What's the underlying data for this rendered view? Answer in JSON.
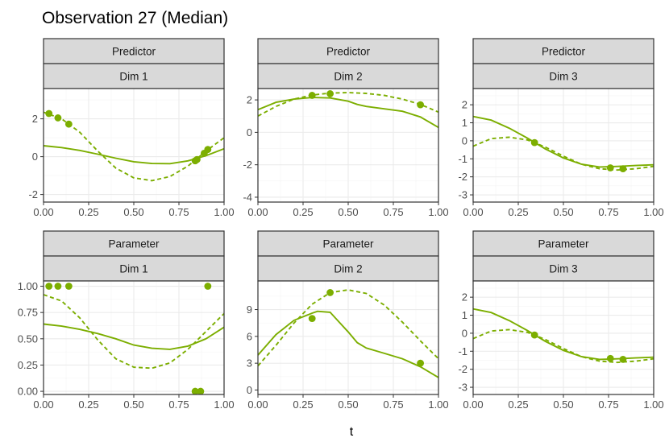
{
  "title": "Observation 27 (Median)",
  "xlabel": "t",
  "series_color": "#7cae00",
  "chart_data": {
    "type": "line",
    "title": "Observation 27 (Median)",
    "xlabel": "t",
    "ylabel": "",
    "grid": true,
    "facets": [
      {
        "strip": [
          "Predictor",
          "Dim 1"
        ],
        "xlim": [
          0,
          1
        ],
        "ylim": [
          -2.4,
          3.6
        ],
        "xticks": [
          0,
          0.25,
          0.5,
          0.75,
          1
        ],
        "xtick_labels": [
          "0.00",
          "0.25",
          "0.50",
          "0.75",
          "1.00"
        ],
        "yticks": [
          -2,
          0,
          2
        ],
        "ytick_labels": [
          "-2",
          "0",
          "2"
        ],
        "solid": {
          "x": [
            0,
            0.1,
            0.2,
            0.3,
            0.4,
            0.5,
            0.6,
            0.7,
            0.8,
            0.9,
            1.0
          ],
          "y": [
            0.58,
            0.48,
            0.33,
            0.13,
            -0.08,
            -0.27,
            -0.36,
            -0.37,
            -0.22,
            0.05,
            0.42
          ]
        },
        "dashed": {
          "x": [
            0,
            0.1,
            0.2,
            0.3,
            0.4,
            0.5,
            0.6,
            0.7,
            0.8,
            0.9,
            1.0
          ],
          "y": [
            2.35,
            2.0,
            1.3,
            0.3,
            -0.6,
            -1.12,
            -1.27,
            -1.05,
            -0.5,
            0.3,
            1.0
          ]
        },
        "points": {
          "x": [
            0.03,
            0.08,
            0.14,
            0.84,
            0.85,
            0.89,
            0.91
          ],
          "y": [
            2.28,
            2.05,
            1.72,
            -0.22,
            -0.15,
            0.18,
            0.38
          ]
        }
      },
      {
        "strip": [
          "Predictor",
          "Dim 2"
        ],
        "xlim": [
          0,
          1
        ],
        "ylim": [
          -4.3,
          2.7
        ],
        "xticks": [
          0,
          0.25,
          0.5,
          0.75,
          1
        ],
        "xtick_labels": [
          "0.00",
          "0.25",
          "0.50",
          "0.75",
          "1.00"
        ],
        "yticks": [
          -4,
          -2,
          0,
          2
        ],
        "ytick_labels": [
          "-4",
          "-2",
          "0",
          "2"
        ],
        "solid": {
          "x": [
            0,
            0.1,
            0.2,
            0.3,
            0.4,
            0.5,
            0.55,
            0.6,
            0.7,
            0.8,
            0.9,
            1.0
          ],
          "y": [
            1.4,
            1.85,
            2.05,
            2.15,
            2.12,
            1.92,
            1.72,
            1.6,
            1.45,
            1.3,
            0.95,
            0.3
          ]
        },
        "dashed": {
          "x": [
            0,
            0.1,
            0.2,
            0.3,
            0.4,
            0.5,
            0.6,
            0.7,
            0.8,
            0.9,
            1.0
          ],
          "y": [
            1.0,
            1.6,
            2.05,
            2.3,
            2.42,
            2.45,
            2.4,
            2.28,
            2.05,
            1.72,
            1.25
          ]
        },
        "points": {
          "x": [
            0.3,
            0.4,
            0.9
          ],
          "y": [
            2.28,
            2.38,
            1.7
          ]
        }
      },
      {
        "strip": [
          "Predictor",
          "Dim 3"
        ],
        "xlim": [
          0,
          1
        ],
        "ylim": [
          -3.4,
          2.9
        ],
        "xticks": [
          0,
          0.25,
          0.5,
          0.75,
          1
        ],
        "xtick_labels": [
          "0.00",
          "0.25",
          "0.50",
          "0.75",
          "1.00"
        ],
        "yticks": [
          -3,
          -2,
          -1,
          0,
          1,
          2
        ],
        "ytick_labels": [
          "-3",
          "-2",
          "-1",
          "0",
          "1",
          "2"
        ],
        "solid": {
          "x": [
            0,
            0.1,
            0.2,
            0.3,
            0.4,
            0.5,
            0.6,
            0.7,
            0.8,
            0.9,
            1.0
          ],
          "y": [
            1.35,
            1.15,
            0.7,
            0.15,
            -0.45,
            -0.95,
            -1.3,
            -1.45,
            -1.42,
            -1.37,
            -1.33
          ]
        },
        "dashed": {
          "x": [
            0,
            0.1,
            0.2,
            0.3,
            0.4,
            0.5,
            0.6,
            0.7,
            0.8,
            0.9,
            1.0
          ],
          "y": [
            -0.3,
            0.12,
            0.2,
            0.05,
            -0.35,
            -0.85,
            -1.3,
            -1.55,
            -1.62,
            -1.55,
            -1.42
          ]
        },
        "points": {
          "x": [
            0.34,
            0.76,
            0.83
          ],
          "y": [
            -0.1,
            -1.5,
            -1.55
          ]
        }
      },
      {
        "strip": [
          "Parameter",
          "Dim 1"
        ],
        "xlim": [
          0,
          1
        ],
        "ylim": [
          -0.03,
          1.05
        ],
        "xticks": [
          0,
          0.25,
          0.5,
          0.75,
          1
        ],
        "xtick_labels": [
          "0.00",
          "0.25",
          "0.50",
          "0.75",
          "1.00"
        ],
        "yticks": [
          0,
          0.25,
          0.5,
          0.75,
          1
        ],
        "ytick_labels": [
          "0.00",
          "0.25",
          "0.50",
          "0.75",
          "1.00"
        ],
        "solid": {
          "x": [
            0,
            0.1,
            0.2,
            0.3,
            0.4,
            0.5,
            0.6,
            0.7,
            0.8,
            0.9,
            1.0
          ],
          "y": [
            0.64,
            0.62,
            0.59,
            0.55,
            0.5,
            0.44,
            0.41,
            0.4,
            0.43,
            0.5,
            0.61
          ]
        },
        "dashed": {
          "x": [
            0,
            0.1,
            0.2,
            0.3,
            0.4,
            0.5,
            0.6,
            0.7,
            0.8,
            0.9,
            1.0
          ],
          "y": [
            0.92,
            0.86,
            0.7,
            0.49,
            0.31,
            0.23,
            0.22,
            0.27,
            0.4,
            0.57,
            0.74
          ]
        },
        "points": {
          "x": [
            0.03,
            0.08,
            0.14,
            0.84,
            0.87,
            0.91
          ],
          "y": [
            1.0,
            1.0,
            1.0,
            0.0,
            0.0,
            1.0
          ]
        }
      },
      {
        "strip": [
          "Parameter",
          "Dim 2"
        ],
        "xlim": [
          0,
          1
        ],
        "ylim": [
          -0.5,
          12.2
        ],
        "xticks": [
          0,
          0.25,
          0.5,
          0.75,
          1
        ],
        "xtick_labels": [
          "0.00",
          "0.25",
          "0.50",
          "0.75",
          "1.00"
        ],
        "yticks": [
          0,
          3,
          6,
          9
        ],
        "ytick_labels": [
          "0",
          "3",
          "6",
          "9"
        ],
        "solid": {
          "x": [
            0,
            0.1,
            0.2,
            0.3,
            0.33,
            0.4,
            0.45,
            0.5,
            0.55,
            0.6,
            0.7,
            0.8,
            0.9,
            1.0
          ],
          "y": [
            3.9,
            6.2,
            7.8,
            8.6,
            8.8,
            8.7,
            7.6,
            6.5,
            5.3,
            4.7,
            4.1,
            3.5,
            2.6,
            1.4
          ]
        },
        "dashed": {
          "x": [
            0,
            0.1,
            0.2,
            0.3,
            0.4,
            0.5,
            0.6,
            0.7,
            0.8,
            0.9,
            1.0
          ],
          "y": [
            2.7,
            5.0,
            7.5,
            9.6,
            10.9,
            11.2,
            10.8,
            9.5,
            7.6,
            5.5,
            3.5
          ]
        },
        "points": {
          "x": [
            0.3,
            0.4,
            0.9
          ],
          "y": [
            8.0,
            10.9,
            3.0
          ]
        }
      },
      {
        "strip": [
          "Parameter",
          "Dim 3"
        ],
        "xlim": [
          0,
          1
        ],
        "ylim": [
          -3.4,
          2.9
        ],
        "xticks": [
          0,
          0.25,
          0.5,
          0.75,
          1
        ],
        "xtick_labels": [
          "0.00",
          "0.25",
          "0.50",
          "0.75",
          "1.00"
        ],
        "yticks": [
          -3,
          -2,
          -1,
          0,
          1,
          2
        ],
        "ytick_labels": [
          "-3",
          "-2",
          "-1",
          "0",
          "1",
          "2"
        ],
        "solid": {
          "x": [
            0,
            0.1,
            0.2,
            0.3,
            0.4,
            0.5,
            0.6,
            0.7,
            0.8,
            0.9,
            1.0
          ],
          "y": [
            1.35,
            1.15,
            0.7,
            0.15,
            -0.45,
            -0.95,
            -1.3,
            -1.45,
            -1.42,
            -1.37,
            -1.33
          ]
        },
        "dashed": {
          "x": [
            0,
            0.1,
            0.2,
            0.3,
            0.4,
            0.5,
            0.6,
            0.7,
            0.8,
            0.9,
            1.0
          ],
          "y": [
            -0.3,
            0.12,
            0.2,
            0.05,
            -0.35,
            -0.85,
            -1.3,
            -1.55,
            -1.62,
            -1.55,
            -1.42
          ]
        },
        "points": {
          "x": [
            0.34,
            0.76,
            0.83
          ],
          "y": [
            -0.1,
            -1.4,
            -1.45
          ]
        }
      }
    ]
  }
}
